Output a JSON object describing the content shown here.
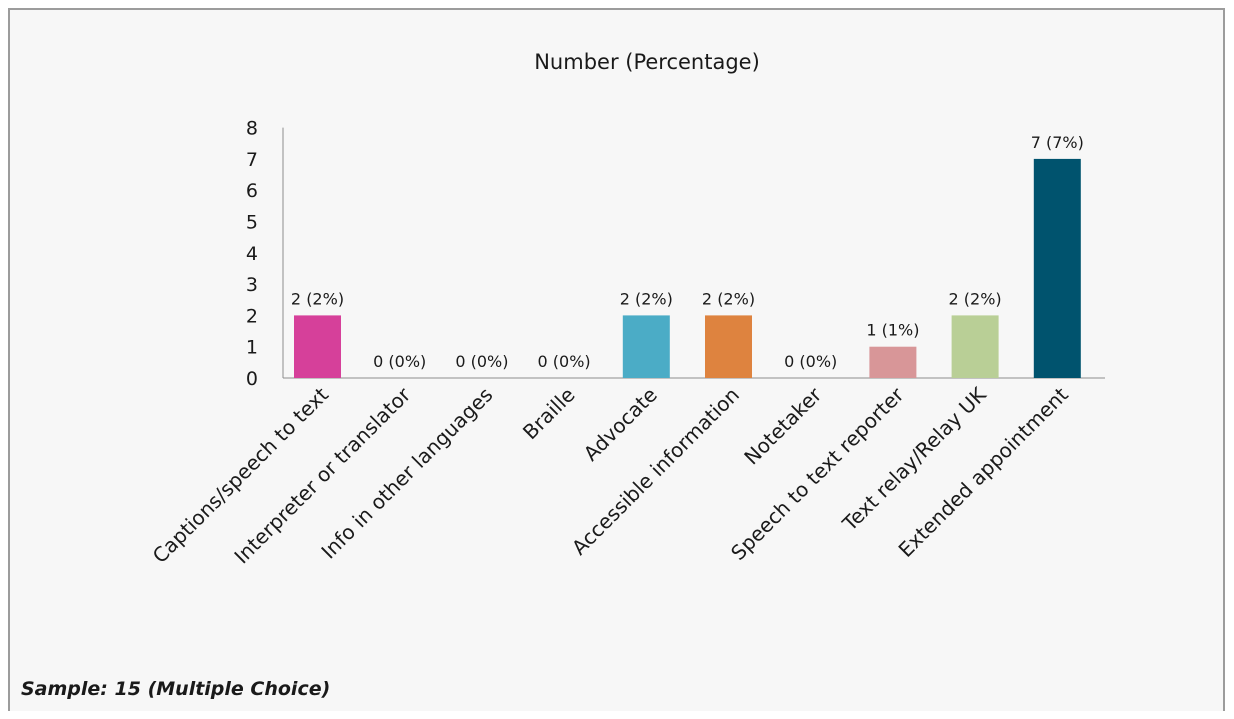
{
  "chart_data": {
    "type": "bar",
    "title": "Number (Percentage)",
    "xlabel": "",
    "ylabel": "",
    "categories": [
      "Captions/speech to text",
      "Interpreter or translator",
      "Info in other languages",
      "Braille",
      "Advocate",
      "Accessible information",
      "Notetaker",
      "Speech to text reporter",
      "Text relay/Relay UK",
      "Extended appointment"
    ],
    "values": [
      2,
      0,
      0,
      0,
      2,
      2,
      0,
      1,
      2,
      7
    ],
    "data_labels": [
      "2 (2%)",
      "0 (0%)",
      "0 (0%)",
      "0 (0%)",
      "2 (2%)",
      "2 (2%)",
      "0 (0%)",
      "1 (1%)",
      "2 (2%)",
      "7 (7%)"
    ],
    "colors": [
      "#d6409a",
      "#d6409a",
      "#d6409a",
      "#d6409a",
      "#4bacc6",
      "#de833f",
      "#de833f",
      "#d89698",
      "#b9cf96",
      "#00536e"
    ],
    "ylim": [
      0,
      8
    ],
    "yticks": [
      "0",
      "1",
      "2",
      "3",
      "4",
      "5",
      "6",
      "7",
      "8"
    ],
    "grid": false,
    "legend": "none"
  },
  "footer": {
    "sample_note": "Sample: 15 (Multiple Choice)"
  }
}
